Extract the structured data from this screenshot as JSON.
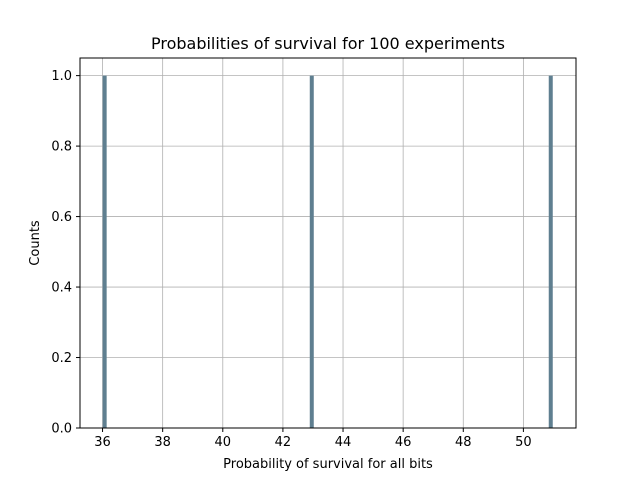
{
  "chart_data": {
    "type": "bar",
    "title": "Probabilities of survival for 100 experiments",
    "xlabel": "Probability of survival for all bits",
    "ylabel": "Counts",
    "xlim": [
      35.25,
      51.75
    ],
    "ylim": [
      0,
      1.05
    ],
    "xticks": [
      36,
      38,
      40,
      42,
      44,
      46,
      48,
      50
    ],
    "xtick_labels": [
      "36",
      "38",
      "40",
      "42",
      "44",
      "46",
      "48",
      "50"
    ],
    "yticks": [
      0.0,
      0.2,
      0.4,
      0.6,
      0.8,
      1.0
    ],
    "ytick_labels": [
      "0.0",
      "0.2",
      "0.4",
      "0.6",
      "0.8",
      "1.0"
    ],
    "grid": true,
    "bar_color": "#5f7f90",
    "bars": [
      {
        "x": 36.07,
        "value": 1.0
      },
      {
        "x": 42.96,
        "value": 1.0
      },
      {
        "x": 50.91,
        "value": 1.0
      }
    ]
  }
}
